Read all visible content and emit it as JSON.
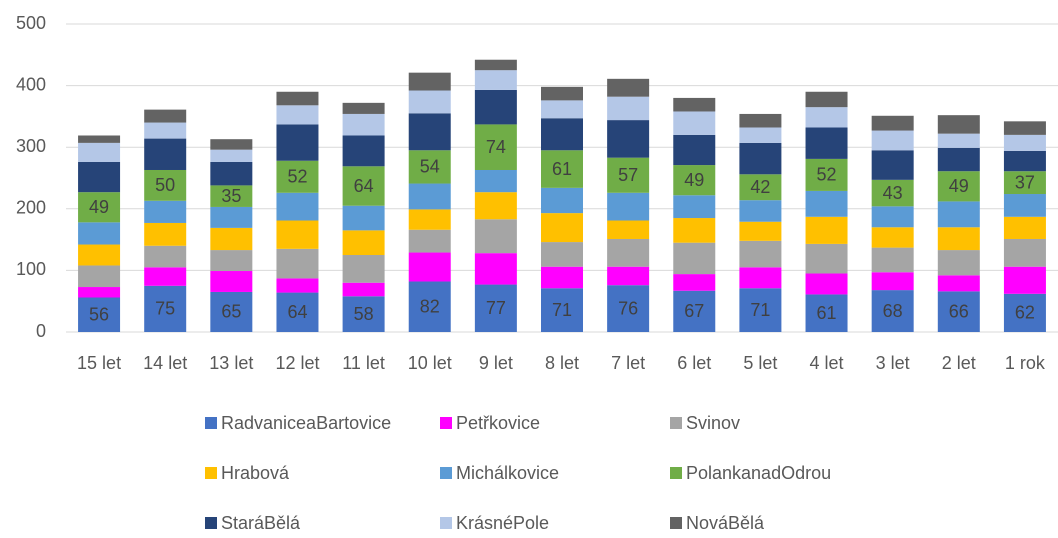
{
  "chart_data": {
    "type": "stacked_bar",
    "categories": [
      "15 let",
      "14 let",
      "13 let",
      "12 let",
      "11 let",
      "10 let",
      "9 let",
      "8 let",
      "7 let",
      "6 let",
      "5 let",
      "4 let",
      "3 let",
      "2 let",
      "1 rok"
    ],
    "series": [
      {
        "name": "RadvaniceaBartovice",
        "color": "#4472c4",
        "labels": true,
        "values": [
          56,
          75,
          65,
          64,
          58,
          82,
          77,
          71,
          76,
          67,
          71,
          61,
          68,
          66,
          62
        ]
      },
      {
        "name": "Petřkovice",
        "color": "#ff00ff",
        "labels": false,
        "values": [
          17,
          30,
          34,
          23,
          22,
          47,
          51,
          35,
          30,
          27,
          34,
          34,
          29,
          26,
          44
        ]
      },
      {
        "name": "Svinov",
        "color": "#a5a5a5",
        "labels": false,
        "values": [
          35,
          35,
          34,
          48,
          45,
          37,
          55,
          40,
          45,
          51,
          43,
          48,
          40,
          41,
          45
        ]
      },
      {
        "name": "Hrabová",
        "color": "#ffc000",
        "labels": false,
        "values": [
          34,
          37,
          36,
          46,
          40,
          33,
          44,
          47,
          30,
          40,
          31,
          44,
          33,
          37,
          36
        ]
      },
      {
        "name": "Michálkovice",
        "color": "#5b9bd5",
        "labels": false,
        "values": [
          36,
          36,
          34,
          45,
          40,
          42,
          36,
          41,
          45,
          37,
          35,
          42,
          34,
          42,
          37
        ]
      },
      {
        "name": "PolankanadOdrou",
        "color": "#70ad47",
        "labels": true,
        "values": [
          49,
          50,
          35,
          52,
          64,
          54,
          74,
          61,
          57,
          49,
          42,
          52,
          43,
          49,
          37
        ]
      },
      {
        "name": "StaráBělá",
        "color": "#264478",
        "labels": false,
        "values": [
          49,
          51,
          38,
          59,
          50,
          60,
          56,
          52,
          61,
          49,
          51,
          51,
          48,
          38,
          33
        ]
      },
      {
        "name": "KrásnéPole",
        "color": "#b4c7e7",
        "labels": false,
        "values": [
          31,
          26,
          20,
          31,
          35,
          37,
          32,
          29,
          38,
          38,
          25,
          33,
          32,
          23,
          26
        ]
      },
      {
        "name": "NováBělá",
        "color": "#636363",
        "labels": false,
        "values": [
          12,
          21,
          17,
          22,
          18,
          29,
          17,
          22,
          29,
          22,
          22,
          25,
          24,
          30,
          22
        ]
      }
    ],
    "ylim": [
      0,
      500
    ],
    "yticks": [
      0,
      100,
      200,
      300,
      400,
      500
    ],
    "grid": true,
    "legend": "bottom"
  }
}
